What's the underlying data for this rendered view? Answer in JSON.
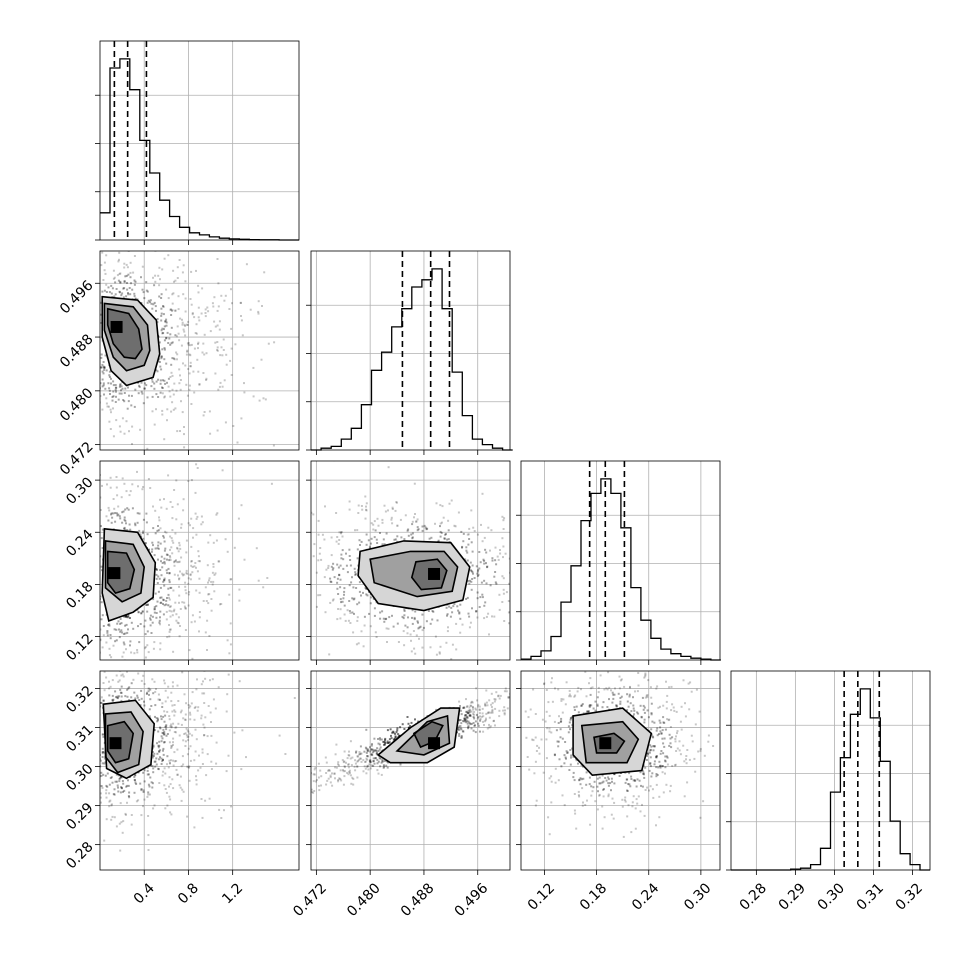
{
  "chart_data": {
    "type": "corner",
    "parameters": [
      {
        "lim": [
          0.0,
          1.8
        ],
        "ticks": [
          0.4,
          0.8,
          1.2
        ],
        "tick_labels": [
          "0.4",
          "0.8",
          "1.2"
        ],
        "mode": 0.15,
        "quantiles": [
          0.13,
          0.25,
          0.42
        ]
      },
      {
        "lim": [
          0.4712,
          0.5008
        ],
        "ticks": [
          0.472,
          0.48,
          0.488,
          0.496
        ],
        "tick_labels": [
          "0.472",
          "0.480",
          "0.488",
          "0.496"
        ],
        "mode": 0.4897,
        "quantiles": [
          0.4848,
          0.489,
          0.4918
        ]
      },
      {
        "lim": [
          0.093,
          0.322
        ],
        "ticks": [
          0.12,
          0.18,
          0.24,
          0.3
        ],
        "tick_labels": [
          "0.12",
          "0.18",
          "0.24",
          "0.30"
        ],
        "mode": 0.192,
        "quantiles": [
          0.172,
          0.19,
          0.212
        ]
      },
      {
        "lim": [
          0.2735,
          0.3245
        ],
        "ticks": [
          0.28,
          0.29,
          0.3,
          0.31,
          0.32
        ],
        "tick_labels": [
          "0.28",
          "0.29",
          "0.30",
          "0.31",
          "0.32"
        ],
        "mode": 0.3055,
        "quantiles": [
          0.3025,
          0.306,
          0.3115
        ]
      }
    ],
    "histograms": [
      {
        "param": 0,
        "bins": [
          0.0,
          0.09,
          0.18,
          0.27,
          0.36,
          0.45,
          0.54,
          0.63,
          0.72,
          0.81,
          0.9,
          0.99,
          1.08,
          1.17,
          1.26,
          1.35,
          1.44,
          1.53,
          1.62,
          1.71,
          1.8
        ],
        "counts": [
          0.15,
          0.95,
          1.0,
          0.83,
          0.55,
          0.37,
          0.22,
          0.13,
          0.07,
          0.04,
          0.028,
          0.017,
          0.01,
          0.006,
          0.004,
          0.002,
          0.001,
          0.001,
          0.0,
          0.0
        ]
      },
      {
        "param": 1,
        "bins": [
          0.4712,
          0.4727,
          0.4742,
          0.4757,
          0.4772,
          0.4787,
          0.4802,
          0.4817,
          0.4832,
          0.4847,
          0.4862,
          0.4877,
          0.4892,
          0.4907,
          0.4922,
          0.4937,
          0.4952,
          0.4967,
          0.4982,
          0.4997,
          0.5012
        ],
        "counts": [
          0.0,
          0.01,
          0.02,
          0.06,
          0.12,
          0.25,
          0.44,
          0.54,
          0.68,
          0.78,
          0.9,
          0.94,
          1.0,
          0.78,
          0.43,
          0.19,
          0.06,
          0.03,
          0.01,
          0.0
        ]
      },
      {
        "param": 2,
        "bins": [
          0.093,
          0.1045,
          0.116,
          0.1275,
          0.139,
          0.1505,
          0.162,
          0.1735,
          0.185,
          0.1965,
          0.208,
          0.2195,
          0.231,
          0.2425,
          0.254,
          0.2655,
          0.277,
          0.2885,
          0.3,
          0.3115,
          0.323
        ],
        "counts": [
          0.005,
          0.02,
          0.05,
          0.13,
          0.32,
          0.52,
          0.77,
          0.92,
          1.0,
          0.92,
          0.73,
          0.4,
          0.22,
          0.12,
          0.06,
          0.035,
          0.02,
          0.01,
          0.005,
          0.0
        ]
      },
      {
        "param": 3,
        "bins": [
          0.2735,
          0.27605,
          0.2786,
          0.28115,
          0.2837,
          0.28625,
          0.2888,
          0.29135,
          0.2939,
          0.29645,
          0.299,
          0.30155,
          0.3041,
          0.30665,
          0.3092,
          0.31175,
          0.3143,
          0.31685,
          0.3194,
          0.32195,
          0.3245
        ],
        "counts": [
          0.0,
          0.0,
          0.0,
          0.0,
          0.0,
          0.0,
          0.005,
          0.01,
          0.03,
          0.12,
          0.43,
          0.62,
          0.86,
          1.0,
          0.84,
          0.6,
          0.27,
          0.09,
          0.03,
          0.0
        ]
      }
    ],
    "pairs": [
      {
        "x": 0,
        "y": 1,
        "center": [
          0.15,
          0.4895
        ],
        "contours": [
          [
            [
              0.07,
              0.4922
            ],
            [
              0.26,
              0.4915
            ],
            [
              0.35,
              0.4892
            ],
            [
              0.38,
              0.4862
            ],
            [
              0.32,
              0.4848
            ],
            [
              0.22,
              0.485
            ],
            [
              0.12,
              0.487
            ],
            [
              0.07,
              0.4898
            ]
          ],
          [
            [
              0.04,
              0.493
            ],
            [
              0.3,
              0.4925
            ],
            [
              0.43,
              0.4898
            ],
            [
              0.45,
              0.486
            ],
            [
              0.4,
              0.4838
            ],
            [
              0.24,
              0.483
            ],
            [
              0.12,
              0.485
            ],
            [
              0.04,
              0.489
            ]
          ],
          [
            [
              0.02,
              0.494
            ],
            [
              0.34,
              0.4935
            ],
            [
              0.51,
              0.4905
            ],
            [
              0.54,
              0.4855
            ],
            [
              0.48,
              0.482
            ],
            [
              0.24,
              0.4808
            ],
            [
              0.1,
              0.483
            ],
            [
              0.02,
              0.488
            ]
          ]
        ]
      },
      {
        "x": 0,
        "y": 2,
        "center": [
          0.13,
          0.193
        ],
        "contours": [
          [
            [
              0.07,
              0.218
            ],
            [
              0.24,
              0.216
            ],
            [
              0.31,
              0.197
            ],
            [
              0.27,
              0.175
            ],
            [
              0.14,
              0.17
            ],
            [
              0.07,
              0.182
            ]
          ],
          [
            [
              0.05,
              0.23
            ],
            [
              0.3,
              0.226
            ],
            [
              0.4,
              0.2
            ],
            [
              0.37,
              0.17
            ],
            [
              0.2,
              0.16
            ],
            [
              0.05,
              0.176
            ]
          ],
          [
            [
              0.04,
              0.244
            ],
            [
              0.34,
              0.24
            ],
            [
              0.5,
              0.205
            ],
            [
              0.48,
              0.165
            ],
            [
              0.3,
              0.148
            ],
            [
              0.08,
              0.138
            ],
            [
              0.02,
              0.17
            ]
          ]
        ]
      },
      {
        "x": 1,
        "y": 2,
        "center": [
          0.4895,
          0.192
        ],
        "contours": [
          [
            [
              0.4868,
              0.206
            ],
            [
              0.49,
              0.209
            ],
            [
              0.4914,
              0.196
            ],
            [
              0.4906,
              0.176
            ],
            [
              0.4876,
              0.174
            ],
            [
              0.4862,
              0.188
            ]
          ],
          [
            [
              0.48,
              0.209
            ],
            [
              0.486,
              0.218
            ],
            [
              0.491,
              0.218
            ],
            [
              0.493,
              0.2
            ],
            [
              0.4922,
              0.172
            ],
            [
              0.487,
              0.166
            ],
            [
              0.4806,
              0.182
            ]
          ],
          [
            [
              0.4785,
              0.218
            ],
            [
              0.485,
              0.23
            ],
            [
              0.492,
              0.228
            ],
            [
              0.4948,
              0.2
            ],
            [
              0.4938,
              0.162
            ],
            [
              0.488,
              0.15
            ],
            [
              0.4812,
              0.158
            ],
            [
              0.4782,
              0.19
            ]
          ]
        ]
      },
      {
        "x": 0,
        "y": 3,
        "center": [
          0.14,
          0.306
        ],
        "contours": [
          [
            [
              0.07,
              0.3105
            ],
            [
              0.22,
              0.3115
            ],
            [
              0.3,
              0.3085
            ],
            [
              0.26,
              0.302
            ],
            [
              0.14,
              0.301
            ],
            [
              0.07,
              0.304
            ]
          ],
          [
            [
              0.05,
              0.3135
            ],
            [
              0.28,
              0.314
            ],
            [
              0.39,
              0.309
            ],
            [
              0.35,
              0.3005
            ],
            [
              0.16,
              0.2985
            ],
            [
              0.05,
              0.3025
            ]
          ],
          [
            [
              0.03,
              0.316
            ],
            [
              0.32,
              0.317
            ],
            [
              0.49,
              0.311
            ],
            [
              0.46,
              0.3005
            ],
            [
              0.24,
              0.297
            ],
            [
              0.06,
              0.2995
            ]
          ]
        ]
      },
      {
        "x": 1,
        "y": 3,
        "center": [
          0.4895,
          0.306
        ],
        "contours": [
          [
            [
              0.4865,
              0.3085
            ],
            [
              0.4892,
              0.3115
            ],
            [
              0.4908,
              0.3105
            ],
            [
              0.4896,
              0.3065
            ],
            [
              0.4875,
              0.305
            ]
          ],
          [
            [
              0.484,
              0.304
            ],
            [
              0.4885,
              0.3115
            ],
            [
              0.4915,
              0.313
            ],
            [
              0.4918,
              0.306
            ],
            [
              0.488,
              0.303
            ]
          ],
          [
            [
              0.4812,
              0.303
            ],
            [
              0.486,
              0.31
            ],
            [
              0.4905,
              0.315
            ],
            [
              0.4933,
              0.315
            ],
            [
              0.4925,
              0.305
            ],
            [
              0.4885,
              0.301
            ],
            [
              0.483,
              0.301
            ]
          ]
        ]
      },
      {
        "x": 2,
        "y": 3,
        "center": [
          0.19,
          0.306
        ],
        "contours": [
          [
            [
              0.177,
              0.3075
            ],
            [
              0.2,
              0.3085
            ],
            [
              0.212,
              0.3065
            ],
            [
              0.203,
              0.3035
            ],
            [
              0.18,
              0.3035
            ]
          ],
          [
            [
              0.163,
              0.3105
            ],
            [
              0.21,
              0.3115
            ],
            [
              0.228,
              0.307
            ],
            [
              0.215,
              0.301
            ],
            [
              0.168,
              0.301
            ]
          ],
          [
            [
              0.153,
              0.313
            ],
            [
              0.21,
              0.315
            ],
            [
              0.243,
              0.3085
            ],
            [
              0.232,
              0.299
            ],
            [
              0.175,
              0.2978
            ],
            [
              0.153,
              0.303
            ]
          ]
        ]
      }
    ]
  }
}
